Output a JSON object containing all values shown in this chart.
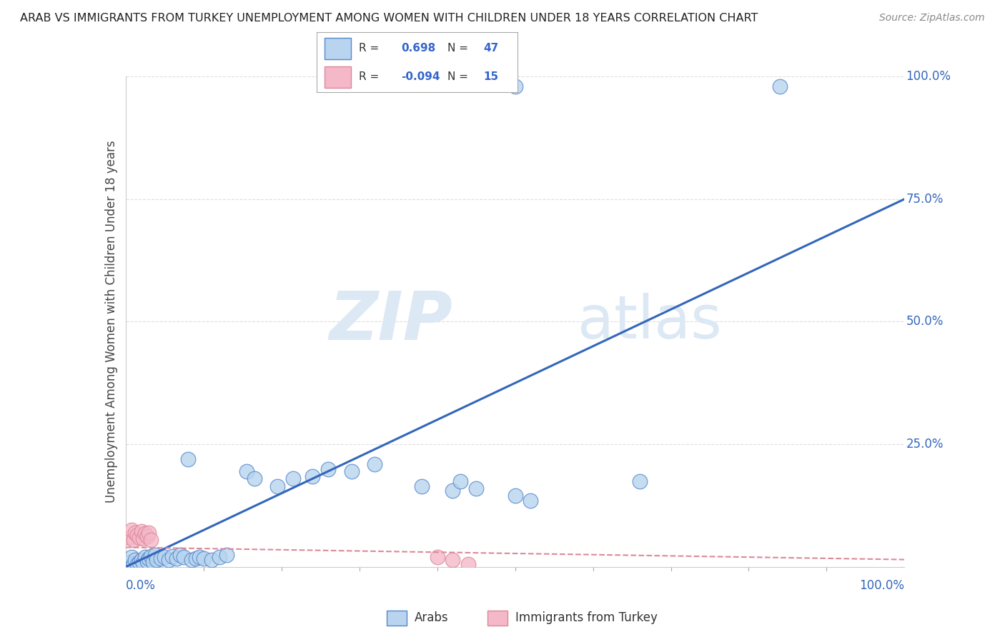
{
  "title": "ARAB VS IMMIGRANTS FROM TURKEY UNEMPLOYMENT AMONG WOMEN WITH CHILDREN UNDER 18 YEARS CORRELATION CHART",
  "source": "Source: ZipAtlas.com",
  "ylabel": "Unemployment Among Women with Children Under 18 years",
  "arab_R": 0.698,
  "arab_N": 47,
  "turkey_R": -0.094,
  "turkey_N": 15,
  "arab_color": "#b8d4ee",
  "arab_edge_color": "#5588cc",
  "turkey_color": "#f4b8c8",
  "turkey_edge_color": "#dd8899",
  "arab_line_color": "#3366bb",
  "turkey_line_color": "#dd8899",
  "watermark_color": "#dce8f4",
  "background_color": "#ffffff",
  "grid_color": "#dddddd",
  "tick_label_color": "#3366bb",
  "title_color": "#222222",
  "source_color": "#888888",
  "label_color": "#444444",
  "arab_trend_intercept": 0.0,
  "arab_trend_slope": 0.75,
  "turkey_trend_intercept": 0.04,
  "turkey_trend_slope": -0.025,
  "arab_points": [
    [
      0.005,
      0.01
    ],
    [
      0.008,
      0.02
    ],
    [
      0.01,
      0.005
    ],
    [
      0.012,
      0.015
    ],
    [
      0.015,
      0.005
    ],
    [
      0.018,
      0.01
    ],
    [
      0.02,
      0.015
    ],
    [
      0.022,
      0.008
    ],
    [
      0.025,
      0.02
    ],
    [
      0.028,
      0.012
    ],
    [
      0.03,
      0.018
    ],
    [
      0.032,
      0.022
    ],
    [
      0.035,
      0.01
    ],
    [
      0.038,
      0.025
    ],
    [
      0.04,
      0.015
    ],
    [
      0.045,
      0.018
    ],
    [
      0.05,
      0.02
    ],
    [
      0.055,
      0.015
    ],
    [
      0.06,
      0.022
    ],
    [
      0.065,
      0.018
    ],
    [
      0.07,
      0.025
    ],
    [
      0.075,
      0.02
    ],
    [
      0.08,
      0.22
    ],
    [
      0.085,
      0.015
    ],
    [
      0.09,
      0.018
    ],
    [
      0.095,
      0.02
    ],
    [
      0.1,
      0.018
    ],
    [
      0.11,
      0.015
    ],
    [
      0.12,
      0.02
    ],
    [
      0.13,
      0.025
    ],
    [
      0.155,
      0.195
    ],
    [
      0.165,
      0.18
    ],
    [
      0.195,
      0.165
    ],
    [
      0.215,
      0.18
    ],
    [
      0.24,
      0.185
    ],
    [
      0.26,
      0.2
    ],
    [
      0.29,
      0.195
    ],
    [
      0.32,
      0.21
    ],
    [
      0.38,
      0.165
    ],
    [
      0.42,
      0.155
    ],
    [
      0.43,
      0.175
    ],
    [
      0.45,
      0.16
    ],
    [
      0.5,
      0.145
    ],
    [
      0.52,
      0.135
    ],
    [
      0.66,
      0.175
    ],
    [
      0.84,
      0.98
    ],
    [
      0.5,
      0.98
    ]
  ],
  "turkey_points": [
    [
      0.005,
      0.06
    ],
    [
      0.008,
      0.075
    ],
    [
      0.01,
      0.055
    ],
    [
      0.012,
      0.07
    ],
    [
      0.015,
      0.065
    ],
    [
      0.018,
      0.06
    ],
    [
      0.02,
      0.072
    ],
    [
      0.022,
      0.058
    ],
    [
      0.025,
      0.068
    ],
    [
      0.028,
      0.062
    ],
    [
      0.03,
      0.07
    ],
    [
      0.032,
      0.055
    ],
    [
      0.4,
      0.02
    ],
    [
      0.42,
      0.015
    ],
    [
      0.44,
      0.005
    ]
  ]
}
